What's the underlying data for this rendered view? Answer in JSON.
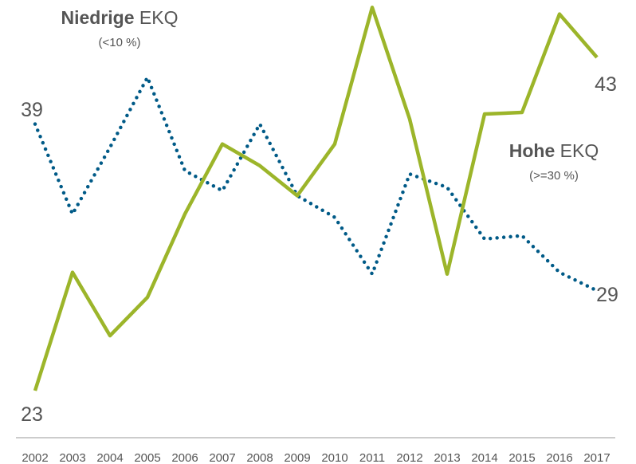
{
  "chart_data": {
    "type": "line",
    "categories": [
      "2002",
      "2003",
      "2004",
      "2005",
      "2006",
      "2007",
      "2008",
      "2009",
      "2010",
      "2011",
      "2012",
      "2013",
      "2014",
      "2015",
      "2016",
      "2017"
    ],
    "ylim": [
      20,
      46
    ],
    "series": [
      {
        "name": "Niedrige EKQ",
        "note": "(<10 %)",
        "color": "#005a87",
        "style": "dotted",
        "values": [
          39,
          33.6,
          37.6,
          41.8,
          36.2,
          35.0,
          39.0,
          34.7,
          33.4,
          30.0,
          36.0,
          35.2,
          32.1,
          32.3,
          30.1,
          29
        ]
      },
      {
        "name": "Hohe EKQ",
        "note": "(>=30 %)",
        "color": "#9cb52a",
        "style": "solid",
        "values": [
          23,
          30.1,
          26.3,
          28.6,
          33.6,
          37.8,
          36.5,
          34.7,
          37.8,
          46.0,
          39.3,
          30.0,
          39.6,
          39.7,
          45.6,
          43
        ]
      }
    ]
  }
}
